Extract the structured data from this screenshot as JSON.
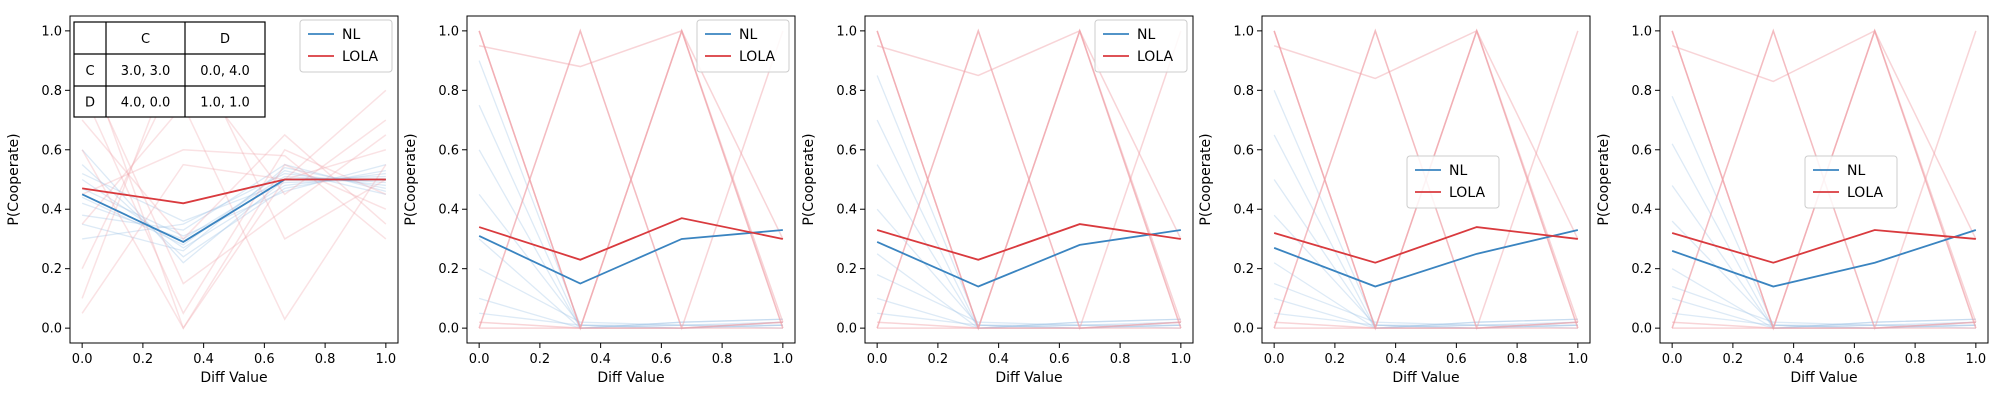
{
  "colors": {
    "nl": "#3a84c0",
    "lola": "#d93a3e",
    "nl_faint": "#9ec4e6",
    "lola_faint": "#f0a0a6"
  },
  "chart_data": [
    {
      "type": "line",
      "xlabel": "Diff Value",
      "ylabel": "P(Cooperate)",
      "xlim": [
        -0.04,
        1.04
      ],
      "ylim": [
        -0.05,
        1.05
      ],
      "xticks": [
        0.0,
        0.2,
        0.4,
        0.6,
        0.8,
        1.0
      ],
      "yticks": [
        0.0,
        0.2,
        0.4,
        0.6,
        0.8,
        1.0
      ],
      "x": [
        0.0,
        0.333,
        0.667,
        1.0
      ],
      "legend": "upper right",
      "series": [
        {
          "name": "NL",
          "values": [
            0.45,
            0.29,
            0.5,
            0.5
          ]
        },
        {
          "name": "LOLA",
          "values": [
            0.47,
            0.42,
            0.5,
            0.5
          ]
        }
      ],
      "payoff_table": {
        "col_headers": [
          "C",
          "D"
        ],
        "rows": [
          {
            "label": "C",
            "cells": [
              "3.0, 3.0",
              "0.0, 4.0"
            ]
          },
          {
            "label": "D",
            "cells": [
              "4.0, 0.0",
              "1.0, 1.0"
            ]
          }
        ]
      },
      "faint_runs": {
        "nl": [
          [
            0.42,
            0.3,
            0.51,
            0.49
          ],
          [
            0.5,
            0.27,
            0.48,
            0.52
          ],
          [
            0.38,
            0.33,
            0.55,
            0.46
          ],
          [
            0.55,
            0.24,
            0.47,
            0.53
          ],
          [
            0.3,
            0.35,
            0.52,
            0.48
          ],
          [
            0.6,
            0.22,
            0.5,
            0.51
          ],
          [
            0.47,
            0.31,
            0.46,
            0.55
          ],
          [
            0.35,
            0.26,
            0.54,
            0.47
          ],
          [
            0.52,
            0.36,
            0.49,
            0.5
          ],
          [
            0.44,
            0.28,
            0.53,
            0.45
          ]
        ],
        "lola": [
          [
            0.95,
            0.0,
            0.5,
            0.6
          ],
          [
            0.1,
            1.0,
            0.3,
            0.5
          ],
          [
            0.8,
            0.05,
            0.6,
            0.45
          ],
          [
            0.2,
            0.9,
            0.45,
            0.7
          ],
          [
            0.6,
            0.0,
            0.55,
            0.4
          ],
          [
            0.35,
            0.75,
            0.03,
            0.55
          ],
          [
            0.7,
            0.3,
            0.65,
            0.35
          ],
          [
            0.05,
            0.55,
            0.5,
            0.8
          ],
          [
            0.9,
            0.15,
            0.4,
            0.65
          ],
          [
            0.45,
            0.6,
            0.58,
            0.3
          ]
        ]
      }
    },
    {
      "type": "line",
      "xlabel": "Diff Value",
      "ylabel": "P(Cooperate)",
      "xlim": [
        -0.04,
        1.04
      ],
      "ylim": [
        -0.05,
        1.05
      ],
      "xticks": [
        0.0,
        0.2,
        0.4,
        0.6,
        0.8,
        1.0
      ],
      "yticks": [
        0.0,
        0.2,
        0.4,
        0.6,
        0.8,
        1.0
      ],
      "x": [
        0.0,
        0.333,
        0.667,
        1.0
      ],
      "legend": "upper right",
      "series": [
        {
          "name": "NL",
          "values": [
            0.31,
            0.15,
            0.3,
            0.33
          ]
        },
        {
          "name": "LOLA",
          "values": [
            0.34,
            0.23,
            0.37,
            0.3
          ]
        }
      ],
      "faint_runs": {
        "nl": [
          [
            0.6,
            0.0,
            0.01,
            0.02
          ],
          [
            0.45,
            0.01,
            0.0,
            0.01
          ],
          [
            0.3,
            0.0,
            0.02,
            0.03
          ],
          [
            0.9,
            0.01,
            0.01,
            0.0
          ],
          [
            0.1,
            0.0,
            0.0,
            0.02
          ],
          [
            0.2,
            0.02,
            0.01,
            0.01
          ],
          [
            0.75,
            0.0,
            0.02,
            0.03
          ],
          [
            0.05,
            0.01,
            0.0,
            0.01
          ]
        ],
        "lola": [
          [
            1.0,
            0.0,
            1.0,
            0.0
          ],
          [
            0.0,
            1.0,
            0.0,
            1.0
          ],
          [
            1.0,
            0.0,
            1.0,
            0.02
          ],
          [
            0.95,
            0.88,
            1.0,
            0.3
          ],
          [
            0.0,
            0.0,
            1.0,
            0.0
          ],
          [
            1.0,
            0.0,
            0.0,
            0.02
          ],
          [
            0.02,
            0.0,
            0.0,
            0.0
          ],
          [
            0.0,
            1.0,
            0.0,
            0.02
          ]
        ]
      }
    },
    {
      "type": "line",
      "xlabel": "Diff Value",
      "ylabel": "P(Cooperate)",
      "xlim": [
        -0.04,
        1.04
      ],
      "ylim": [
        -0.05,
        1.05
      ],
      "xticks": [
        0.0,
        0.2,
        0.4,
        0.6,
        0.8,
        1.0
      ],
      "yticks": [
        0.0,
        0.2,
        0.4,
        0.6,
        0.8,
        1.0
      ],
      "x": [
        0.0,
        0.333,
        0.667,
        1.0
      ],
      "legend": "upper right",
      "series": [
        {
          "name": "NL",
          "values": [
            0.29,
            0.14,
            0.28,
            0.33
          ]
        },
        {
          "name": "LOLA",
          "values": [
            0.33,
            0.23,
            0.35,
            0.3
          ]
        }
      ],
      "faint_runs": {
        "nl": [
          [
            0.55,
            0.0,
            0.01,
            0.02
          ],
          [
            0.4,
            0.01,
            0.0,
            0.01
          ],
          [
            0.25,
            0.0,
            0.02,
            0.03
          ],
          [
            0.85,
            0.01,
            0.01,
            0.0
          ],
          [
            0.1,
            0.0,
            0.0,
            0.02
          ],
          [
            0.18,
            0.02,
            0.01,
            0.01
          ],
          [
            0.7,
            0.0,
            0.02,
            0.03
          ],
          [
            0.05,
            0.01,
            0.0,
            0.01
          ]
        ],
        "lola": [
          [
            1.0,
            0.0,
            1.0,
            0.0
          ],
          [
            0.0,
            1.0,
            0.0,
            1.0
          ],
          [
            1.0,
            0.0,
            1.0,
            0.02
          ],
          [
            0.95,
            0.85,
            1.0,
            0.3
          ],
          [
            0.0,
            0.0,
            1.0,
            0.0
          ],
          [
            1.0,
            0.0,
            0.0,
            0.02
          ],
          [
            0.02,
            0.0,
            0.0,
            0.0
          ],
          [
            0.0,
            1.0,
            0.0,
            0.02
          ]
        ]
      }
    },
    {
      "type": "line",
      "xlabel": "Diff Value",
      "ylabel": "P(Cooperate)",
      "xlim": [
        -0.04,
        1.04
      ],
      "ylim": [
        -0.05,
        1.05
      ],
      "xticks": [
        0.0,
        0.2,
        0.4,
        0.6,
        0.8,
        1.0
      ],
      "yticks": [
        0.0,
        0.2,
        0.4,
        0.6,
        0.8,
        1.0
      ],
      "x": [
        0.0,
        0.333,
        0.667,
        1.0
      ],
      "legend": "center",
      "series": [
        {
          "name": "NL",
          "values": [
            0.27,
            0.14,
            0.25,
            0.33
          ]
        },
        {
          "name": "LOLA",
          "values": [
            0.32,
            0.22,
            0.34,
            0.3
          ]
        }
      ],
      "faint_runs": {
        "nl": [
          [
            0.5,
            0.0,
            0.01,
            0.02
          ],
          [
            0.38,
            0.01,
            0.0,
            0.01
          ],
          [
            0.22,
            0.0,
            0.02,
            0.03
          ],
          [
            0.8,
            0.01,
            0.01,
            0.0
          ],
          [
            0.1,
            0.0,
            0.0,
            0.02
          ],
          [
            0.15,
            0.02,
            0.01,
            0.01
          ],
          [
            0.65,
            0.0,
            0.02,
            0.03
          ],
          [
            0.05,
            0.01,
            0.0,
            0.01
          ]
        ],
        "lola": [
          [
            1.0,
            0.0,
            1.0,
            0.0
          ],
          [
            0.0,
            1.0,
            0.0,
            1.0
          ],
          [
            1.0,
            0.0,
            1.0,
            0.02
          ],
          [
            0.95,
            0.84,
            1.0,
            0.3
          ],
          [
            0.0,
            0.0,
            1.0,
            0.0
          ],
          [
            1.0,
            0.0,
            0.0,
            0.02
          ],
          [
            0.02,
            0.0,
            0.0,
            0.0
          ],
          [
            0.0,
            1.0,
            0.0,
            0.02
          ]
        ]
      }
    },
    {
      "type": "line",
      "xlabel": "Diff Value",
      "ylabel": "P(Cooperate)",
      "xlim": [
        -0.04,
        1.04
      ],
      "ylim": [
        -0.05,
        1.05
      ],
      "xticks": [
        0.0,
        0.2,
        0.4,
        0.6,
        0.8,
        1.0
      ],
      "yticks": [
        0.0,
        0.2,
        0.4,
        0.6,
        0.8,
        1.0
      ],
      "x": [
        0.0,
        0.333,
        0.667,
        1.0
      ],
      "legend": "center",
      "series": [
        {
          "name": "NL",
          "values": [
            0.26,
            0.14,
            0.22,
            0.33
          ]
        },
        {
          "name": "LOLA",
          "values": [
            0.32,
            0.22,
            0.33,
            0.3
          ]
        }
      ],
      "faint_runs": {
        "nl": [
          [
            0.48,
            0.0,
            0.01,
            0.02
          ],
          [
            0.36,
            0.01,
            0.0,
            0.01
          ],
          [
            0.2,
            0.0,
            0.02,
            0.03
          ],
          [
            0.78,
            0.01,
            0.01,
            0.0
          ],
          [
            0.1,
            0.0,
            0.0,
            0.02
          ],
          [
            0.14,
            0.02,
            0.01,
            0.01
          ],
          [
            0.62,
            0.0,
            0.02,
            0.03
          ],
          [
            0.05,
            0.01,
            0.0,
            0.01
          ]
        ],
        "lola": [
          [
            1.0,
            0.0,
            1.0,
            0.0
          ],
          [
            0.0,
            1.0,
            0.0,
            1.0
          ],
          [
            1.0,
            0.0,
            1.0,
            0.02
          ],
          [
            0.95,
            0.83,
            1.0,
            0.3
          ],
          [
            0.0,
            0.0,
            1.0,
            0.0
          ],
          [
            1.0,
            0.0,
            0.0,
            0.02
          ],
          [
            0.02,
            0.0,
            0.0,
            0.0
          ],
          [
            0.0,
            1.0,
            0.0,
            0.02
          ]
        ]
      }
    }
  ]
}
